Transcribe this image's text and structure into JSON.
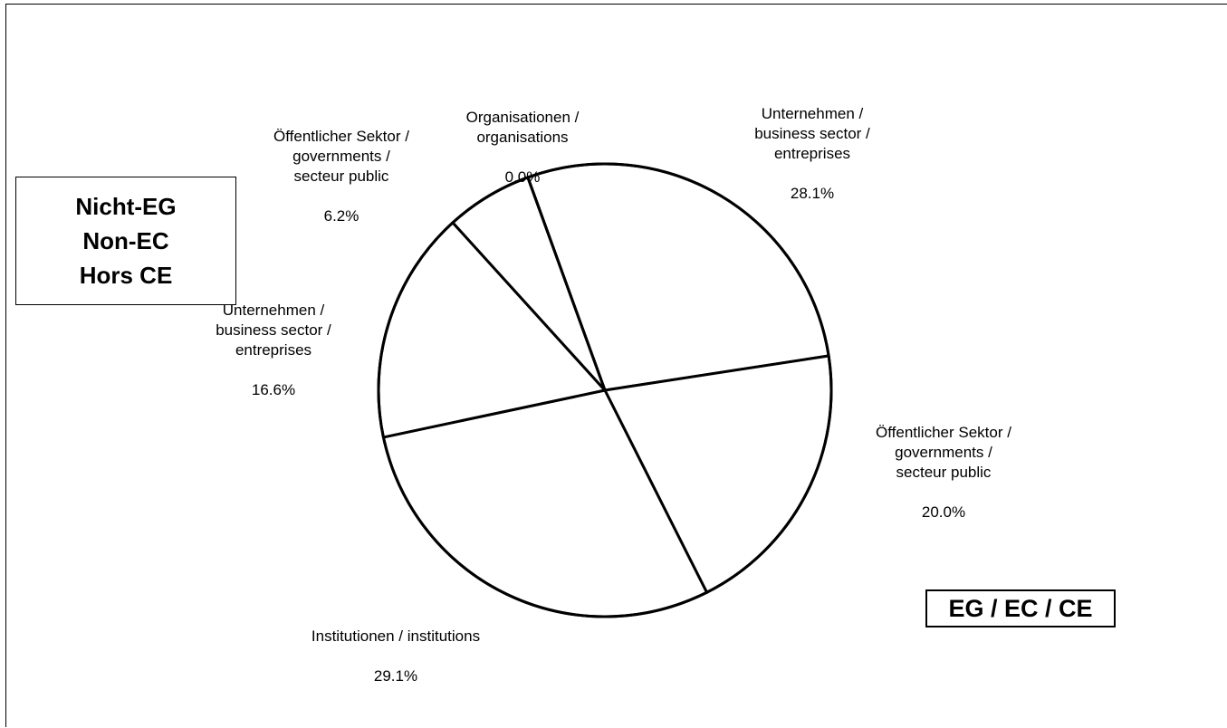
{
  "chart_data": {
    "type": "pie",
    "title": "",
    "slices": [
      {
        "group": "EU",
        "label": "Unternehmen /\nbusiness sector /\nentreprises",
        "percent": "28.1%",
        "value": 28.1
      },
      {
        "group": "EU",
        "label": "Öffentlicher Sektor /\ngovernments /\nsecteur public",
        "percent": "20.0%",
        "value": 20.0
      },
      {
        "group": "EU",
        "label": "Institutionen / institutions",
        "percent": "29.1%",
        "value": 29.1
      },
      {
        "group": "Non-EU",
        "label": "Unternehmen /\nbusiness sector /\nentreprises",
        "percent": "16.6%",
        "value": 16.6
      },
      {
        "group": "Non-EU",
        "label": "Öffentlicher Sektor /\ngovernments /\nsecteur public",
        "percent": "6.2%",
        "value": 6.2
      },
      {
        "group": "Non-EU",
        "label": "Organisationen /\norganisations",
        "percent": "0.0%",
        "value": 0.0
      }
    ],
    "group_labels": {
      "non_eu": "Nicht-EG\nNon-EC\nHors CE",
      "eu": "EG / EC / CE"
    },
    "colors": {
      "fill": "#ffffff",
      "stroke": "#000000"
    }
  }
}
